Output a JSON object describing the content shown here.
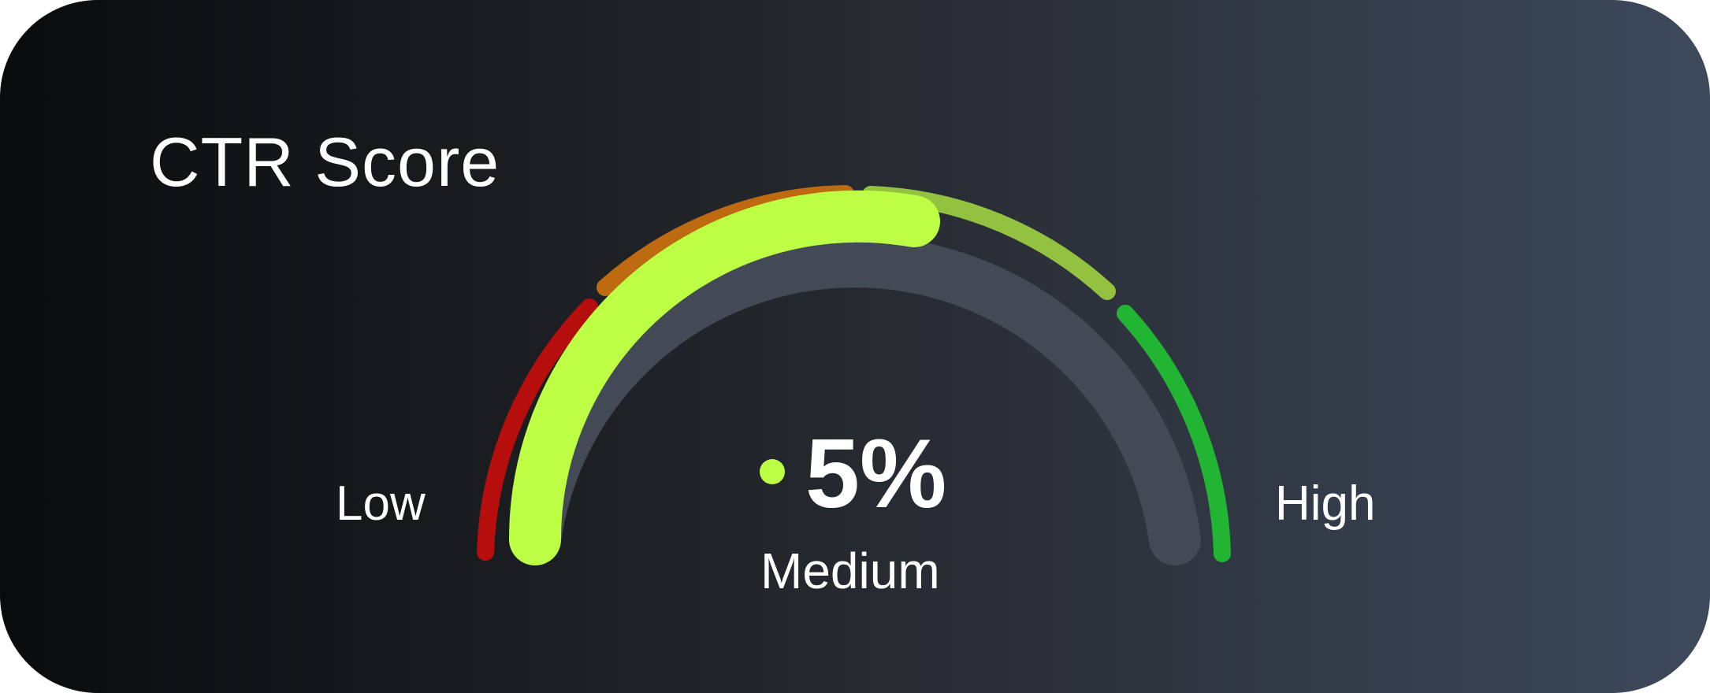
{
  "widget": {
    "title": "CTR Score",
    "value_text": "5%",
    "status": "Medium",
    "low_label": "Low",
    "high_label": "High",
    "level_fraction": 0.5
  },
  "colors": {
    "low": "#b60d0d",
    "medium_low": "#be6a10",
    "medium_high": "#92c23f",
    "high": "#22b533",
    "progress": "#bcff45",
    "track": "#434a56",
    "indicator_dot": "#bcff45"
  }
}
